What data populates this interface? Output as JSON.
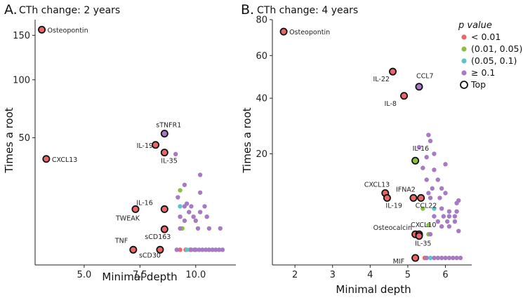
{
  "colors": {
    "lt001": "#e8676a",
    "p001_005": "#8dbf45",
    "p005_01": "#5fc3c9",
    "ge01": "#a77bc2",
    "top_stroke": "#111111"
  },
  "legend": {
    "title": "p value",
    "items": [
      {
        "label": "< 0.01",
        "key": "lt001"
      },
      {
        "label": "(0.01, 0.05)",
        "key": "p001_005"
      },
      {
        "label": "(0.05, 0.1)",
        "key": "p005_01"
      },
      {
        "label": "≥ 0.1",
        "key": "ge01"
      },
      {
        "label": "Top",
        "key": "top"
      }
    ]
  },
  "chart_data": [
    {
      "type": "scatter",
      "panel_letter": "A.",
      "title": "CTh change: 2 years",
      "xlabel": "Minimal depth",
      "ylabel": "Times a root",
      "xlim": [
        2.8,
        11.8
      ],
      "xticks": [
        5.0,
        7.5,
        10.0
      ],
      "xtick_labels": [
        "5.0",
        "7.5",
        "10.0"
      ],
      "y_scale": "sqrt",
      "ylim": [
        1,
        170
      ],
      "yticks": [
        50,
        100,
        150
      ],
      "ytick_labels": [
        "50",
        "100",
        "150"
      ],
      "points": [
        {
          "label": "Osteopontin",
          "x": 3.1,
          "y": 157,
          "p": "lt001",
          "top": true
        },
        {
          "label": "CXCL13",
          "x": 3.3,
          "y": 36,
          "p": "lt001",
          "top": true
        },
        {
          "label": "sTNFR1",
          "x": 8.6,
          "y": 53,
          "p": "ge01",
          "top": true
        },
        {
          "label": "IL-19",
          "x": 8.2,
          "y": 45,
          "p": "lt001",
          "top": true
        },
        {
          "label": "IL-35",
          "x": 8.6,
          "y": 40,
          "p": "lt001",
          "top": true
        },
        {
          "label": "IL-16",
          "x": 8.6,
          "y": 12,
          "p": "lt001",
          "top": true
        },
        {
          "label": "TWEAK",
          "x": 7.3,
          "y": 12,
          "p": "lt001",
          "top": true
        },
        {
          "label": "sCD163",
          "x": 8.6,
          "y": 6,
          "p": "lt001",
          "top": true
        },
        {
          "label": "TNF",
          "x": 7.2,
          "y": 2,
          "p": "lt001",
          "top": true
        },
        {
          "label": "sCD30",
          "x": 8.4,
          "y": 2,
          "p": "lt001",
          "top": true
        },
        {
          "x": 9.1,
          "y": 39,
          "p": "ge01"
        },
        {
          "x": 10.2,
          "y": 27,
          "p": "ge01"
        },
        {
          "x": 9.5,
          "y": 22,
          "p": "ge01"
        },
        {
          "x": 9.3,
          "y": 19.5,
          "p": "p001_005"
        },
        {
          "x": 10.2,
          "y": 18.5,
          "p": "ge01"
        },
        {
          "x": 9.2,
          "y": 16.5,
          "p": "ge01"
        },
        {
          "x": 9.6,
          "y": 14,
          "p": "ge01"
        },
        {
          "x": 9.3,
          "y": 13,
          "p": "p005_01"
        },
        {
          "x": 9.5,
          "y": 13,
          "p": "ge01"
        },
        {
          "x": 9.8,
          "y": 13,
          "p": "ge01"
        },
        {
          "x": 10.4,
          "y": 13,
          "p": "ge01"
        },
        {
          "x": 9.7,
          "y": 11,
          "p": "ge01"
        },
        {
          "x": 10.2,
          "y": 11,
          "p": "ge01"
        },
        {
          "x": 9.3,
          "y": 9.5,
          "p": "ge01"
        },
        {
          "x": 9.9,
          "y": 9.5,
          "p": "ge01"
        },
        {
          "x": 10.5,
          "y": 9.5,
          "p": "ge01"
        },
        {
          "x": 9.5,
          "y": 8.3,
          "p": "ge01"
        },
        {
          "x": 10.0,
          "y": 8.3,
          "p": "ge01"
        },
        {
          "x": 9.4,
          "y": 6.2,
          "p": "p001_005"
        },
        {
          "x": 10.1,
          "y": 6.2,
          "p": "ge01"
        },
        {
          "x": 10.6,
          "y": 6.2,
          "p": "ge01"
        },
        {
          "x": 11.1,
          "y": 6.2,
          "p": "ge01"
        },
        {
          "x": 9.3,
          "y": 6.2,
          "p": "ge01"
        },
        {
          "x": 9.55,
          "y": 2,
          "p": "lt001"
        },
        {
          "x": 9.75,
          "y": 2,
          "p": "lt001"
        },
        {
          "x": 9.95,
          "y": 2,
          "p": "lt001"
        },
        {
          "x": 9.3,
          "y": 2,
          "p": "lt001"
        },
        {
          "x": 9.6,
          "y": 2,
          "p": "p005_01"
        },
        {
          "x": 9.8,
          "y": 2,
          "p": "ge01"
        },
        {
          "x": 10.0,
          "y": 2,
          "p": "ge01"
        },
        {
          "x": 10.15,
          "y": 2,
          "p": "ge01"
        },
        {
          "x": 10.3,
          "y": 2,
          "p": "ge01"
        },
        {
          "x": 10.45,
          "y": 2,
          "p": "ge01"
        },
        {
          "x": 10.6,
          "y": 2,
          "p": "ge01"
        },
        {
          "x": 10.75,
          "y": 2,
          "p": "ge01"
        },
        {
          "x": 10.9,
          "y": 2,
          "p": "ge01"
        },
        {
          "x": 11.05,
          "y": 2,
          "p": "ge01"
        },
        {
          "x": 11.2,
          "y": 2,
          "p": "ge01"
        },
        {
          "x": 9.15,
          "y": 2,
          "p": "ge01"
        }
      ]
    },
    {
      "type": "scatter",
      "panel_letter": "B.",
      "title": "CTh change: 4 years",
      "xlabel": "Minimal depth",
      "ylabel": "Times a root",
      "xlim": [
        1.4,
        6.7
      ],
      "xticks": [
        2,
        3,
        4,
        5,
        6
      ],
      "xtick_labels": [
        "2",
        "3",
        "4",
        "5",
        "6"
      ],
      "y_scale": "sqrt",
      "ylim": [
        1,
        80
      ],
      "yticks": [
        20,
        40,
        60,
        80
      ],
      "ytick_labels": [
        "20",
        "40",
        "60",
        "80"
      ],
      "points": [
        {
          "label": "Osteopontin",
          "x": 1.7,
          "y": 73,
          "p": "lt001",
          "top": true
        },
        {
          "label": "IL-22",
          "x": 4.6,
          "y": 52,
          "p": "lt001",
          "top": true
        },
        {
          "label": "CCL7",
          "x": 5.3,
          "y": 45,
          "p": "ge01",
          "top": true
        },
        {
          "label": "IL-8",
          "x": 4.9,
          "y": 41,
          "p": "lt001",
          "top": true
        },
        {
          "label": "IL-16",
          "x": 5.2,
          "y": 18,
          "p": "p001_005",
          "top": true
        },
        {
          "label": "CXCL13",
          "x": 4.4,
          "y": 10,
          "p": "lt001",
          "top": true
        },
        {
          "label": "IL-19",
          "x": 4.45,
          "y": 9,
          "p": "lt001",
          "top": true
        },
        {
          "label": "IFNA2",
          "x": 5.15,
          "y": 9,
          "p": "lt001",
          "top": true
        },
        {
          "label": "CCL22",
          "x": 5.35,
          "y": 9,
          "p": "lt001",
          "top": true
        },
        {
          "label": "Osteocalcin",
          "x": 5.2,
          "y": 3.2,
          "p": "lt001",
          "top": true
        },
        {
          "label": "CXCL10",
          "x": 5.3,
          "y": 3.2,
          "p": "lt001",
          "top": true
        },
        {
          "label": "IL-35",
          "x": 5.3,
          "y": 3.0,
          "p": "lt001",
          "top": true
        },
        {
          "label": "MIF",
          "x": 5.2,
          "y": 1,
          "p": "lt001",
          "top": true
        },
        {
          "x": 5.55,
          "y": 26,
          "p": "ge01"
        },
        {
          "x": 5.6,
          "y": 24,
          "p": "ge01"
        },
        {
          "x": 5.3,
          "y": 22,
          "p": "ge01"
        },
        {
          "x": 5.7,
          "y": 20,
          "p": "ge01"
        },
        {
          "x": 5.5,
          "y": 19,
          "p": "ge01"
        },
        {
          "x": 6.0,
          "y": 17,
          "p": "ge01"
        },
        {
          "x": 5.4,
          "y": 16,
          "p": "ge01"
        },
        {
          "x": 5.7,
          "y": 15.5,
          "p": "ge01"
        },
        {
          "x": 5.5,
          "y": 13,
          "p": "ge01"
        },
        {
          "x": 5.8,
          "y": 13,
          "p": "ge01"
        },
        {
          "x": 5.65,
          "y": 11,
          "p": "ge01"
        },
        {
          "x": 5.9,
          "y": 11,
          "p": "ge01"
        },
        {
          "x": 5.55,
          "y": 10,
          "p": "ge01"
        },
        {
          "x": 6.0,
          "y": 10,
          "p": "ge01"
        },
        {
          "x": 5.6,
          "y": 9,
          "p": "ge01"
        },
        {
          "x": 5.85,
          "y": 9,
          "p": "ge01"
        },
        {
          "x": 6.35,
          "y": 8.5,
          "p": "ge01"
        },
        {
          "x": 6.3,
          "y": 8,
          "p": "ge01"
        },
        {
          "x": 5.4,
          "y": 7,
          "p": "p001_005"
        },
        {
          "x": 5.7,
          "y": 7,
          "p": "p005_01"
        },
        {
          "x": 5.9,
          "y": 7,
          "p": "ge01"
        },
        {
          "x": 6.1,
          "y": 6.5,
          "p": "ge01"
        },
        {
          "x": 6.3,
          "y": 6.5,
          "p": "ge01"
        },
        {
          "x": 5.7,
          "y": 5.7,
          "p": "ge01"
        },
        {
          "x": 5.95,
          "y": 5.7,
          "p": "ge01"
        },
        {
          "x": 6.1,
          "y": 5.7,
          "p": "ge01"
        },
        {
          "x": 6.25,
          "y": 5.7,
          "p": "ge01"
        },
        {
          "x": 5.8,
          "y": 4.9,
          "p": "ge01"
        },
        {
          "x": 6.05,
          "y": 4.9,
          "p": "ge01"
        },
        {
          "x": 6.25,
          "y": 4.9,
          "p": "ge01"
        },
        {
          "x": 5.55,
          "y": 4.4,
          "p": "p001_005"
        },
        {
          "x": 5.9,
          "y": 4.2,
          "p": "ge01"
        },
        {
          "x": 6.1,
          "y": 4.2,
          "p": "ge01"
        },
        {
          "x": 5.55,
          "y": 3.2,
          "p": "p001_005"
        },
        {
          "x": 5.6,
          "y": 3.2,
          "p": "ge01"
        },
        {
          "x": 6.35,
          "y": 3.6,
          "p": "ge01"
        },
        {
          "x": 5.45,
          "y": 1,
          "p": "lt001"
        },
        {
          "x": 5.6,
          "y": 1,
          "p": "p005_01"
        },
        {
          "x": 5.5,
          "y": 1,
          "p": "ge01"
        },
        {
          "x": 5.7,
          "y": 1,
          "p": "ge01"
        },
        {
          "x": 5.8,
          "y": 1,
          "p": "ge01"
        },
        {
          "x": 5.9,
          "y": 1,
          "p": "ge01"
        },
        {
          "x": 6.0,
          "y": 1,
          "p": "ge01"
        },
        {
          "x": 6.1,
          "y": 1,
          "p": "ge01"
        },
        {
          "x": 6.2,
          "y": 1,
          "p": "ge01"
        },
        {
          "x": 6.3,
          "y": 1,
          "p": "ge01"
        },
        {
          "x": 6.4,
          "y": 1,
          "p": "ge01"
        }
      ]
    }
  ]
}
